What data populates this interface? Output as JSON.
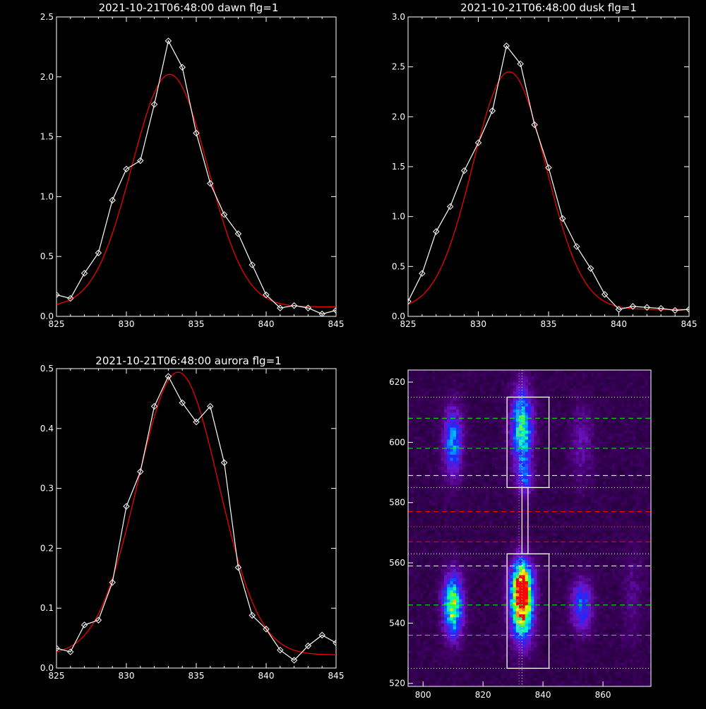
{
  "colors": {
    "background": "#000000",
    "axes": "#ffffff",
    "observed": "#ffffff",
    "fit": "#ff0000",
    "green_line": "#00ff00",
    "red_line": "#ff0000",
    "white_line": "#ffffff"
  },
  "chart_data": [
    {
      "type": "line",
      "title": "2021-10-21T06:48:00 dawn flg=1",
      "xlim": [
        825,
        845
      ],
      "ylim": [
        0,
        2.5
      ],
      "xticks": [
        "825",
        "830",
        "835",
        "840",
        "845"
      ],
      "yticks": [
        "0.0",
        "0.5",
        "1.0",
        "1.5",
        "2.0",
        "2.5"
      ],
      "xtick_values": [
        825,
        830,
        835,
        840,
        845
      ],
      "ytick_values": [
        0,
        0.5,
        1.0,
        1.5,
        2.0,
        2.5
      ],
      "series": [
        {
          "style": "line+diamond",
          "x": [
            825,
            826,
            827,
            828,
            829,
            830,
            831,
            832,
            833,
            834,
            835,
            836,
            837,
            838,
            839,
            840,
            841,
            842,
            843,
            844,
            845
          ],
          "y": [
            0.18,
            0.15,
            0.36,
            0.53,
            0.97,
            1.23,
            1.3,
            1.77,
            2.3,
            2.08,
            1.53,
            1.11,
            0.85,
            0.69,
            0.43,
            0.18,
            0.07,
            0.09,
            0.07,
            0.02,
            0.05
          ]
        },
        {
          "style": "fit-curve",
          "model": "gaussian",
          "amplitude": 1.94,
          "center": 833.1,
          "sigma": 2.7,
          "offset": 0.08
        }
      ]
    },
    {
      "type": "line",
      "title": "2021-10-21T06:48:00 dusk flg=1",
      "xlim": [
        825,
        845
      ],
      "ylim": [
        0,
        3.0
      ],
      "xticks": [
        "825",
        "830",
        "835",
        "840",
        "845"
      ],
      "yticks": [
        "0.0",
        "0.5",
        "1.0",
        "1.5",
        "2.0",
        "2.5",
        "3.0"
      ],
      "xtick_values": [
        825,
        830,
        835,
        840,
        845
      ],
      "ytick_values": [
        0,
        0.5,
        1.0,
        1.5,
        2.0,
        2.5,
        3.0
      ],
      "series": [
        {
          "style": "line+diamond",
          "x": [
            825,
            826,
            827,
            828,
            829,
            830,
            831,
            832,
            833,
            834,
            835,
            836,
            837,
            838,
            839,
            840,
            841,
            842,
            843,
            844,
            845
          ],
          "y": [
            0.15,
            0.43,
            0.85,
            1.1,
            1.46,
            1.74,
            2.06,
            2.71,
            2.53,
            1.92,
            1.49,
            0.98,
            0.7,
            0.48,
            0.22,
            0.07,
            0.1,
            0.09,
            0.08,
            0.06,
            0.07
          ]
        },
        {
          "style": "fit-curve",
          "model": "gaussian",
          "amplitude": 2.38,
          "center": 832.2,
          "sigma": 2.6,
          "offset": 0.07
        }
      ]
    },
    {
      "type": "line",
      "title": "2021-10-21T06:48:00 aurora flg=1",
      "xlim": [
        825,
        845
      ],
      "ylim": [
        0,
        0.5
      ],
      "xticks": [
        "825",
        "830",
        "835",
        "840",
        "845"
      ],
      "yticks": [
        "0.0",
        "0.1",
        "0.2",
        "0.3",
        "0.4",
        "0.5"
      ],
      "xtick_values": [
        825,
        830,
        835,
        840,
        845
      ],
      "ytick_values": [
        0,
        0.1,
        0.2,
        0.3,
        0.4,
        0.5
      ],
      "series": [
        {
          "style": "line+diamond",
          "x": [
            825,
            826,
            827,
            828,
            829,
            830,
            831,
            832,
            833,
            834,
            835,
            836,
            837,
            838,
            839,
            840,
            841,
            842,
            843,
            844,
            845
          ],
          "y": [
            0.033,
            0.027,
            0.072,
            0.08,
            0.143,
            0.27,
            0.328,
            0.437,
            0.487,
            0.443,
            0.411,
            0.437,
            0.343,
            0.168,
            0.088,
            0.065,
            0.03,
            0.013,
            0.037,
            0.055,
            0.042
          ]
        },
        {
          "style": "fit-curve",
          "model": "gaussian",
          "amplitude": 0.472,
          "center": 833.7,
          "sigma": 2.9,
          "offset": 0.022
        }
      ]
    },
    {
      "type": "heatmap",
      "title": "",
      "xlim": [
        795,
        876
      ],
      "ylim": [
        519,
        624
      ],
      "xticks": [
        "800",
        "820",
        "840",
        "860"
      ],
      "yticks": [
        "520",
        "540",
        "560",
        "580",
        "600",
        "620"
      ],
      "xtick_values": [
        800,
        820,
        840,
        860
      ],
      "ytick_values": [
        520,
        540,
        560,
        580,
        600,
        620
      ],
      "colormap": "rainbow",
      "blobs": [
        {
          "x": 810,
          "y": 600,
          "sx": 2.2,
          "sy": 8,
          "amp": 0.45
        },
        {
          "x": 833,
          "y": 605,
          "sx": 2.5,
          "sy": 9,
          "amp": 0.62
        },
        {
          "x": 834,
          "y": 588,
          "sx": 1.8,
          "sy": 4,
          "amp": 0.3
        },
        {
          "x": 810,
          "y": 546,
          "sx": 2.3,
          "sy": 7,
          "amp": 0.72
        },
        {
          "x": 833,
          "y": 546,
          "sx": 2.6,
          "sy": 8,
          "amp": 0.95
        },
        {
          "x": 833,
          "y": 555,
          "sx": 2.6,
          "sy": 5,
          "amp": 0.4
        },
        {
          "x": 853,
          "y": 546,
          "sx": 2.5,
          "sy": 6,
          "amp": 0.38
        },
        {
          "x": 853,
          "y": 600,
          "sx": 2.5,
          "sy": 9,
          "amp": 0.16
        },
        {
          "x": 870,
          "y": 550,
          "sx": 2.5,
          "sy": 10,
          "amp": 0.1
        }
      ],
      "vlines": [
        {
          "x": 832,
          "style": "dotted",
          "color": "#ff55ff"
        },
        {
          "x": 833,
          "style": "dotted",
          "color": "#ffffff"
        }
      ],
      "hlines": [
        {
          "y": 615,
          "style": "dotted",
          "color": "#ffffff"
        },
        {
          "y": 608,
          "style": "dashed",
          "color": "#00ff00"
        },
        {
          "y": 598,
          "style": "dashed",
          "color": "#00ff00"
        },
        {
          "y": 589,
          "style": "dashed",
          "color": "#ffffff"
        },
        {
          "y": 585,
          "style": "dotted",
          "color": "#ffffff"
        },
        {
          "y": 577,
          "style": "dashed",
          "color": "#ff0000"
        },
        {
          "y": 572,
          "style": "dotted",
          "color": "#ff3333"
        },
        {
          "y": 567,
          "style": "dashed",
          "color": "#ff0000"
        },
        {
          "y": 563,
          "style": "dotted",
          "color": "#ffffff"
        },
        {
          "y": 559,
          "style": "dashed",
          "color": "#ffffff"
        },
        {
          "y": 546,
          "style": "dashed",
          "color": "#00ff00"
        },
        {
          "y": 536,
          "style": "dashed",
          "color": "#00ff00"
        },
        {
          "y": 525,
          "style": "dotted",
          "color": "#ffffff"
        }
      ],
      "boxes": [
        {
          "x0": 828,
          "x1": 842,
          "y0": 585,
          "y1": 615
        },
        {
          "x0": 833,
          "x1": 835,
          "y0": 563,
          "y1": 585
        },
        {
          "x0": 828,
          "x1": 842,
          "y0": 525,
          "y1": 563
        }
      ]
    }
  ]
}
